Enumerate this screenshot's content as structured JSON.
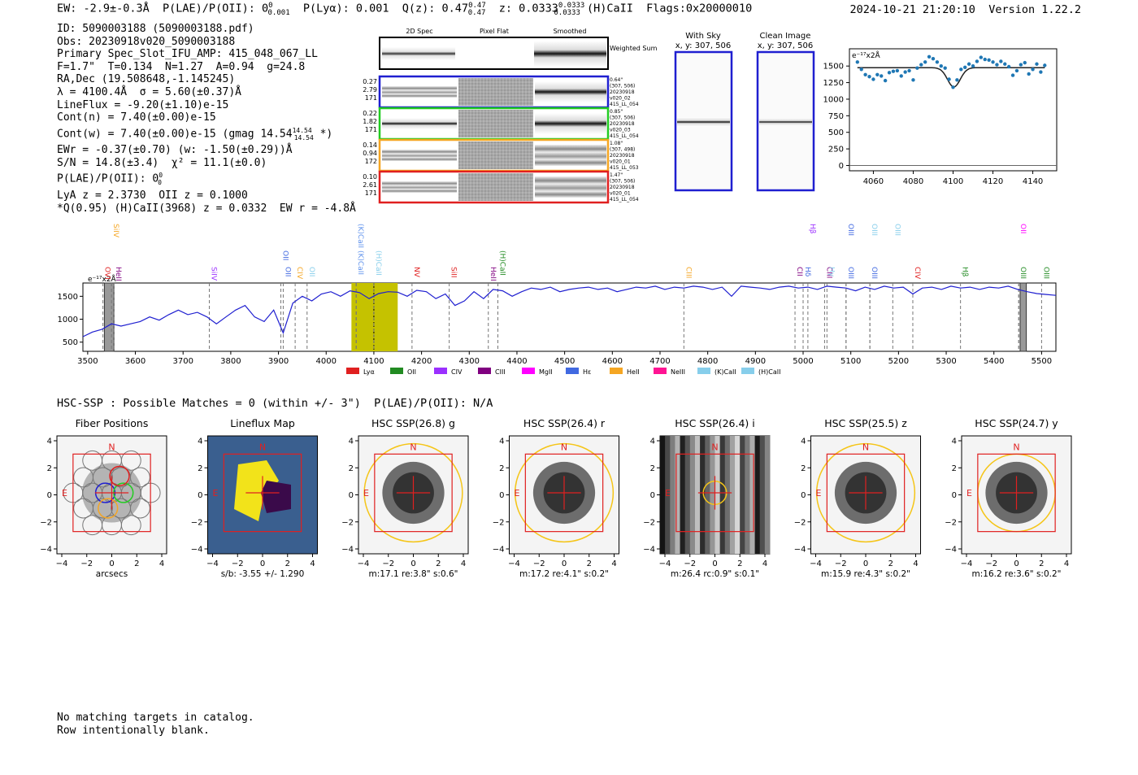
{
  "header": {
    "line": "EW: -2.9±-0.3Å  P(LAE)/P(OII): 0",
    "ew_sup": "0",
    "ew_sub": "0.001",
    "rest": "  P(Lyα): 0.001  Q(z): 0.47",
    "qz_sup": "0.47",
    "qz_sub": "0.47",
    "z_text": "  z: 0.0333",
    "z_sup": "0.0333",
    "z_sub": "0.0333",
    "tail": " (H)CaII  Flags:0x20000010",
    "timestamp": "2024-10-21 21:20:10",
    "version": "Version 1.22.2"
  },
  "info": {
    "id": "ID: 5090003188 (5090003188.pdf)",
    "obs": "Obs: 20230918v020_5090003188",
    "spec": "Primary Spec_Slot_IFU_AMP: 415_048_067_LL",
    "fit": "F=1.7\"  T=0.134  N=1.27  A=0.94  g=24.8",
    "radec": "RA,Dec (19.508648,-1.145245)",
    "lambda": "λ = 4100.4Å  σ = 5.60(±0.37)Å",
    "lineflux": "LineFlux = -9.20(±1.10)e-15",
    "contn": "Cont(n) = 7.40(±0.00)e-15",
    "contw": "Cont(w) = 7.40(±0.00)e-15 (gmag 14.54",
    "contw_sup": "14.54",
    "contw_sub": "14.54",
    "contw_tail": " *)",
    "ewr": "EWr = -0.37(±0.70) (w: -1.50(±0.29))Å",
    "sn": "S/N = 14.8(±3.4)  χ² = 11.1(±0.0)",
    "plae": "P(LAE)/P(OII): 0",
    "plae_sup": "0",
    "plae_sub": "0",
    "lya": "LyA z = 2.3730  OII z = 0.1000",
    "q": "*Q(0.95) (H)CaII(3968) z = 0.0332  EW r = -4.8Å"
  },
  "cutouts": {
    "col_headers": [
      "2D Spec",
      "Pixel Flat",
      "Smoothed"
    ],
    "weighted_label": "Weighted Sum",
    "rows": [
      {
        "left": [
          "0.27",
          "2.79",
          "171"
        ],
        "right": [
          "0.64\"",
          "(307, 506)",
          "20230918",
          "v020_02",
          "415_LL_054"
        ],
        "color": "#1f1fd0"
      },
      {
        "left": [
          "0.22",
          "1.82",
          "171"
        ],
        "right": [
          "0.85\"",
          "(307, 506)",
          "20230918",
          "v020_03",
          "415_LL_054"
        ],
        "color": "#22cc22"
      },
      {
        "left": [
          "0.14",
          "0.94",
          "172"
        ],
        "right": [
          "1.08\"",
          "(307, 498)",
          "20230918",
          "v020_01",
          "415_LL_053"
        ],
        "color": "#f5a623"
      },
      {
        "left": [
          "0.10",
          "2.61",
          "171"
        ],
        "right": [
          "1.47\"",
          "(307, 506)",
          "20230918",
          "v020_01",
          "415_LL_054"
        ],
        "color": "#e02020"
      }
    ]
  },
  "sky_panels": [
    {
      "title": "With Sky",
      "coords": "x, y: 307, 506"
    },
    {
      "title": "Clean Image",
      "coords": "x, y: 307, 506"
    }
  ],
  "chart_data": [
    {
      "type": "scatter",
      "title": "",
      "unit_label": "e⁻¹⁷x2Å",
      "x_ticks": [
        "4060",
        "4080",
        "4100",
        "4120",
        "4140"
      ],
      "y_ticks": [
        "0",
        "250",
        "500",
        "750",
        "1000",
        "1250",
        "1500"
      ],
      "xlim": [
        4048,
        4152
      ],
      "ylim": [
        -80,
        1760
      ],
      "x": [
        4052,
        4054,
        4056,
        4058,
        4060,
        4062,
        4064,
        4066,
        4068,
        4070,
        4072,
        4074,
        4076,
        4078,
        4080,
        4082,
        4084,
        4086,
        4088,
        4090,
        4092,
        4094,
        4096,
        4098,
        4100,
        4102,
        4104,
        4106,
        4108,
        4110,
        4112,
        4114,
        4116,
        4118,
        4120,
        4122,
        4124,
        4126,
        4128,
        4130,
        4132,
        4134,
        4136,
        4138,
        4140,
        4142,
        4144,
        4146
      ],
      "y": [
        1560,
        1450,
        1370,
        1340,
        1300,
        1370,
        1350,
        1280,
        1400,
        1420,
        1430,
        1350,
        1410,
        1430,
        1290,
        1470,
        1520,
        1560,
        1640,
        1610,
        1560,
        1500,
        1470,
        1300,
        1180,
        1290,
        1450,
        1480,
        1530,
        1500,
        1570,
        1630,
        1600,
        1590,
        1560,
        1520,
        1570,
        1530,
        1490,
        1360,
        1430,
        1520,
        1550,
        1380,
        1450,
        1530,
        1410,
        1510
      ],
      "fit_baseline": 1475,
      "fit_center": 4100.4,
      "fit_depth": 290,
      "fit_sigma": 3.2
    },
    {
      "type": "line",
      "title": "",
      "unit_label": "e⁻¹⁷x2Å",
      "x_ticks": [
        "3500",
        "3600",
        "3700",
        "3800",
        "3900",
        "4000",
        "4100",
        "4200",
        "4300",
        "4400",
        "4500",
        "4600",
        "4700",
        "4800",
        "4900",
        "5000",
        "5100",
        "5200",
        "5300",
        "5400",
        "5500"
      ],
      "y_ticks": [
        "500",
        "1000",
        "1500"
      ],
      "xlim": [
        3490,
        5530
      ],
      "ylim": [
        300,
        1790
      ],
      "x": [
        3490,
        3510,
        3530,
        3550,
        3570,
        3590,
        3610,
        3630,
        3650,
        3670,
        3690,
        3710,
        3730,
        3750,
        3770,
        3790,
        3810,
        3830,
        3850,
        3870,
        3890,
        3910,
        3930,
        3950,
        3970,
        3990,
        4010,
        4030,
        4050,
        4070,
        4090,
        4110,
        4130,
        4150,
        4170,
        4190,
        4210,
        4230,
        4250,
        4270,
        4290,
        4310,
        4330,
        4350,
        4370,
        4390,
        4410,
        4430,
        4450,
        4470,
        4490,
        4510,
        4530,
        4550,
        4570,
        4590,
        4610,
        4630,
        4650,
        4670,
        4690,
        4710,
        4730,
        4750,
        4770,
        4790,
        4810,
        4830,
        4850,
        4870,
        4890,
        4910,
        4930,
        4950,
        4970,
        4990,
        5010,
        5030,
        5050,
        5070,
        5090,
        5110,
        5130,
        5150,
        5170,
        5190,
        5210,
        5230,
        5250,
        5270,
        5290,
        5310,
        5330,
        5350,
        5370,
        5390,
        5410,
        5430,
        5450,
        5470,
        5490,
        5510,
        5530
      ],
      "y": [
        620,
        720,
        780,
        900,
        850,
        900,
        950,
        1050,
        980,
        1100,
        1200,
        1100,
        1150,
        1050,
        900,
        1050,
        1200,
        1300,
        1050,
        950,
        1200,
        700,
        1350,
        1500,
        1400,
        1550,
        1600,
        1500,
        1620,
        1580,
        1450,
        1560,
        1600,
        1590,
        1500,
        1630,
        1600,
        1450,
        1550,
        1300,
        1400,
        1600,
        1450,
        1650,
        1620,
        1500,
        1600,
        1680,
        1650,
        1700,
        1600,
        1650,
        1680,
        1700,
        1650,
        1680,
        1600,
        1650,
        1700,
        1680,
        1720,
        1650,
        1700,
        1680,
        1720,
        1700,
        1650,
        1700,
        1500,
        1720,
        1700,
        1680,
        1650,
        1700,
        1720,
        1680,
        1700,
        1650,
        1720,
        1700,
        1680,
        1620,
        1700,
        1650,
        1720,
        1680,
        1700,
        1550,
        1680,
        1700,
        1650,
        1720,
        1680,
        1700,
        1650,
        1700,
        1680,
        1720,
        1650,
        1600,
        1560,
        1540,
        1520
      ],
      "lines": [
        {
          "label": "OVI",
          "color": "#e02020",
          "x": 3532,
          "row": 2
        },
        {
          "label": "SiIV",
          "color": "#f5a623",
          "x": 3550,
          "row": 0
        },
        {
          "label": "HeII",
          "color": "#800080",
          "x": 3555,
          "row": 2
        },
        {
          "label": "SiIV",
          "color": "#9b30ff",
          "x": 3755,
          "row": 2
        },
        {
          "label": "OII",
          "color": "#4169e1",
          "x": 3905,
          "row": 1
        },
        {
          "label": "OII",
          "color": "#4169e1",
          "x": 3910,
          "row": 2
        },
        {
          "label": "CIV",
          "color": "#f5a623",
          "x": 3935,
          "row": 2
        },
        {
          "label": "OII",
          "color": "#87ceeb",
          "x": 3960,
          "row": 2
        },
        {
          "label": "(K)CaII",
          "color": "#6495ed",
          "x": 4063,
          "row": 0
        },
        {
          "label": "(K)CaII",
          "color": "#6495ed",
          "x": 4063,
          "row": 1
        },
        {
          "label": "(H)CaII",
          "color": "#87ceeb",
          "x": 4100,
          "row": 1
        },
        {
          "label": "NV",
          "color": "#e02020",
          "x": 4180,
          "row": 2
        },
        {
          "label": "SiII",
          "color": "#e02020",
          "x": 4258,
          "row": 2
        },
        {
          "label": "HeII",
          "color": "#800080",
          "x": 4340,
          "row": 2
        },
        {
          "label": "(H)CaII",
          "color": "#228b22",
          "x": 4360,
          "row": 1
        },
        {
          "label": "CIII",
          "color": "#f5a623",
          "x": 4750,
          "row": 2
        },
        {
          "label": "CII",
          "color": "#800080",
          "x": 4983,
          "row": 2
        },
        {
          "label": "Hβ",
          "color": "#9b30ff",
          "x": 5010,
          "row": 0
        },
        {
          "label": "Hδ",
          "color": "#4169e1",
          "x": 5000,
          "row": 2
        },
        {
          "label": "CIII",
          "color": "#800080",
          "x": 5045,
          "row": 2
        },
        {
          "label": "Hγ",
          "color": "#87ceeb",
          "x": 5050,
          "row": 2
        },
        {
          "label": "OIII",
          "color": "#4169e1",
          "x": 5090,
          "row": 0
        },
        {
          "label": "OIII",
          "color": "#4169e1",
          "x": 5090,
          "row": 2
        },
        {
          "label": "OIII",
          "color": "#87ceeb",
          "x": 5140,
          "row": 0
        },
        {
          "label": "OIII",
          "color": "#4169e1",
          "x": 5140,
          "row": 2
        },
        {
          "label": "OIII",
          "color": "#87ceeb",
          "x": 5188,
          "row": 0
        },
        {
          "label": "CIV",
          "color": "#e02020",
          "x": 5230,
          "row": 2
        },
        {
          "label": "Hβ",
          "color": "#228b22",
          "x": 5330,
          "row": 2
        },
        {
          "label": "OII",
          "color": "#ff00ff",
          "x": 5452,
          "row": 0
        },
        {
          "label": "OIII",
          "color": "#228b22",
          "x": 5452,
          "row": 2
        },
        {
          "label": "OIII",
          "color": "#228b22",
          "x": 5500,
          "row": 2
        }
      ],
      "legend": [
        {
          "label": "Lyα",
          "color": "#e02020"
        },
        {
          "label": "OII",
          "color": "#228b22"
        },
        {
          "label": "CIV",
          "color": "#9b30ff"
        },
        {
          "label": "CIII",
          "color": "#800080"
        },
        {
          "label": "MgII",
          "color": "#ff00ff"
        },
        {
          "label": "Hε",
          "color": "#4169e1"
        },
        {
          "label": "HeII",
          "color": "#f5a623"
        },
        {
          "label": "NeIII",
          "color": "#ff1493"
        },
        {
          "label": "(K)CaII",
          "color": "#87ceeb"
        },
        {
          "label": "(H)CaII",
          "color": "#87ceeb"
        }
      ]
    }
  ],
  "hsc": {
    "title": "HSC-SSP : Possible Matches = 0 (within +/- 3\")  P(LAE)/P(OII): N/A",
    "axis_ticks": [
      "−4",
      "−2",
      "0",
      "2",
      "4"
    ],
    "north": "N",
    "east": "E",
    "panels": [
      {
        "title": "Fiber Positions",
        "caption": "arcsecs"
      },
      {
        "title": "Lineflux Map",
        "caption": "s/b: -3.55 +/- 1.290"
      },
      {
        "title": "HSC SSP(26.8) g",
        "caption": "m:17.1  re:3.8\"  s:0.6\""
      },
      {
        "title": "HSC SSP(26.4) r",
        "caption": "m:17.2  re:4.1\"  s:0.2\""
      },
      {
        "title": "HSC SSP(26.4) i",
        "caption": "m:26.4 rc:0.9\"  s:0.1\""
      },
      {
        "title": "HSC SSP(25.5) z",
        "caption": "m:15.9  re:4.3\"  s:0.2\""
      },
      {
        "title": "HSC SSP(24.7) y",
        "caption": "m:16.2  re:3.6\"  s:0.2\""
      }
    ]
  },
  "footer": {
    "line1": "No matching targets in catalog.",
    "line2": "Row intentionally blank."
  }
}
